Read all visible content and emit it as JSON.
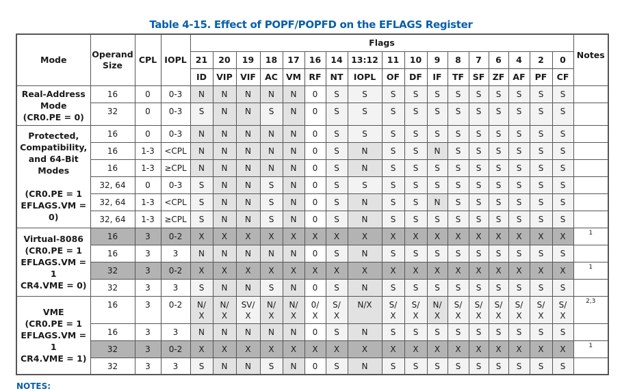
{
  "title": "Table 4-15.  Effect of POPF/POPFD on the EFLAGS Register",
  "headers": {
    "mode": "Mode",
    "operand_size": "Operand Size",
    "cpl": "CPL",
    "iopl": "IOPL",
    "flags": "Flags",
    "notes": "Notes",
    "bits": [
      "21",
      "20",
      "19",
      "18",
      "17",
      "16",
      "14",
      "13:12",
      "11",
      "10",
      "9",
      "8",
      "7",
      "6",
      "4",
      "2",
      "0"
    ],
    "names": [
      "ID",
      "VIP",
      "VIF",
      "AC",
      "VM",
      "RF",
      "NT",
      "IOPL",
      "OF",
      "DF",
      "IF",
      "TF",
      "SF",
      "ZF",
      "AF",
      "PF",
      "CF"
    ]
  },
  "groups": [
    {
      "mode": [
        "Real-Address",
        "Mode",
        "(CR0.PE = 0)"
      ],
      "rows": [
        0,
        1
      ]
    },
    {
      "mode": [
        "Protected,",
        "Compatibility,",
        "and 64-Bit",
        "Modes",
        "",
        "(CR0.PE = 1",
        "EFLAGS.VM = 0)"
      ],
      "rows": [
        2,
        3,
        4,
        5,
        6,
        7
      ]
    },
    {
      "mode": [
        "Virtual-8086",
        "(CR0.PE = 1",
        "EFLAGS.VM = 1",
        "CR4.VME = 0)"
      ],
      "rows": [
        8,
        9,
        10,
        11
      ]
    },
    {
      "mode": [
        "VME",
        "(CR0.PE = 1",
        "EFLAGS.VM = 1",
        "CR4.VME = 1)"
      ],
      "rows": [
        12,
        13,
        14,
        15
      ]
    }
  ],
  "rows": [
    {
      "size": "16",
      "cpl": "0",
      "iopl": "0-3",
      "flags": [
        "N",
        "N",
        "N",
        "N",
        "N",
        "0",
        "S",
        "S",
        "S",
        "S",
        "S",
        "S",
        "S",
        "S",
        "S",
        "S",
        "S"
      ],
      "note": ""
    },
    {
      "size": "32",
      "cpl": "0",
      "iopl": "0-3",
      "flags": [
        "S",
        "N",
        "N",
        "S",
        "N",
        "0",
        "S",
        "S",
        "S",
        "S",
        "S",
        "S",
        "S",
        "S",
        "S",
        "S",
        "S"
      ],
      "note": ""
    },
    {
      "size": "16",
      "cpl": "0",
      "iopl": "0-3",
      "flags": [
        "N",
        "N",
        "N",
        "N",
        "N",
        "0",
        "S",
        "S",
        "S",
        "S",
        "S",
        "S",
        "S",
        "S",
        "S",
        "S",
        "S"
      ],
      "note": ""
    },
    {
      "size": "16",
      "cpl": "1-3",
      "iopl": "<CPL",
      "flags": [
        "N",
        "N",
        "N",
        "N",
        "N",
        "0",
        "S",
        "N",
        "S",
        "S",
        "N",
        "S",
        "S",
        "S",
        "S",
        "S",
        "S"
      ],
      "note": ""
    },
    {
      "size": "16",
      "cpl": "1-3",
      "iopl": "≥CPL",
      "flags": [
        "N",
        "N",
        "N",
        "N",
        "N",
        "0",
        "S",
        "N",
        "S",
        "S",
        "S",
        "S",
        "S",
        "S",
        "S",
        "S",
        "S"
      ],
      "note": ""
    },
    {
      "size": "32, 64",
      "cpl": "0",
      "iopl": "0-3",
      "flags": [
        "S",
        "N",
        "N",
        "S",
        "N",
        "0",
        "S",
        "S",
        "S",
        "S",
        "S",
        "S",
        "S",
        "S",
        "S",
        "S",
        "S"
      ],
      "note": ""
    },
    {
      "size": "32, 64",
      "cpl": "1-3",
      "iopl": "<CPL",
      "flags": [
        "S",
        "N",
        "N",
        "S",
        "N",
        "0",
        "S",
        "N",
        "S",
        "S",
        "N",
        "S",
        "S",
        "S",
        "S",
        "S",
        "S"
      ],
      "note": ""
    },
    {
      "size": "32, 64",
      "cpl": "1-3",
      "iopl": "≥CPL",
      "flags": [
        "S",
        "N",
        "N",
        "S",
        "N",
        "0",
        "S",
        "N",
        "S",
        "S",
        "S",
        "S",
        "S",
        "S",
        "S",
        "S",
        "S"
      ],
      "note": ""
    },
    {
      "size": "16",
      "cpl": "3",
      "iopl": "0-2",
      "flags": [
        "X",
        "X",
        "X",
        "X",
        "X",
        "X",
        "X",
        "X",
        "X",
        "X",
        "X",
        "X",
        "X",
        "X",
        "X",
        "X",
        "X"
      ],
      "note": "1"
    },
    {
      "size": "16",
      "cpl": "3",
      "iopl": "3",
      "flags": [
        "N",
        "N",
        "N",
        "N",
        "N",
        "0",
        "S",
        "N",
        "S",
        "S",
        "S",
        "S",
        "S",
        "S",
        "S",
        "S",
        "S"
      ],
      "note": ""
    },
    {
      "size": "32",
      "cpl": "3",
      "iopl": "0-2",
      "flags": [
        "X",
        "X",
        "X",
        "X",
        "X",
        "X",
        "X",
        "X",
        "X",
        "X",
        "X",
        "X",
        "X",
        "X",
        "X",
        "X",
        "X"
      ],
      "note": "1"
    },
    {
      "size": "32",
      "cpl": "3",
      "iopl": "3",
      "flags": [
        "S",
        "N",
        "N",
        "S",
        "N",
        "0",
        "S",
        "N",
        "S",
        "S",
        "S",
        "S",
        "S",
        "S",
        "S",
        "S",
        "S"
      ],
      "note": ""
    },
    {
      "size": "16",
      "cpl": "3",
      "iopl": "0-2",
      "flags": [
        "N/\nX",
        "N/\nX",
        "SV/\nX",
        "N/\nX",
        "N/\nX",
        "0/\nX",
        "S/\nX",
        "N/X",
        "S/\nX",
        "S/\nX",
        "N/\nX",
        "S/\nX",
        "S/\nX",
        "S/\nX",
        "S/\nX",
        "S/\nX",
        "S/\nX"
      ],
      "note": "2,3"
    },
    {
      "size": "16",
      "cpl": "3",
      "iopl": "3",
      "flags": [
        "N",
        "N",
        "N",
        "N",
        "N",
        "0",
        "S",
        "N",
        "S",
        "S",
        "S",
        "S",
        "S",
        "S",
        "S",
        "S",
        "S"
      ],
      "note": ""
    },
    {
      "size": "32",
      "cpl": "3",
      "iopl": "0-2",
      "flags": [
        "X",
        "X",
        "X",
        "X",
        "X",
        "X",
        "X",
        "X",
        "X",
        "X",
        "X",
        "X",
        "X",
        "X",
        "X",
        "X",
        "X"
      ],
      "note": "1"
    },
    {
      "size": "32",
      "cpl": "3",
      "iopl": "3",
      "flags": [
        "S",
        "N",
        "N",
        "S",
        "N",
        "0",
        "S",
        "N",
        "S",
        "S",
        "S",
        "S",
        "S",
        "S",
        "S",
        "S",
        "S"
      ],
      "note": ""
    }
  ],
  "colors": {
    "title": "#0860a8",
    "cell_white": "#ffffff",
    "cell_light": "#f3f3f3",
    "cell_medium": "#e2e2e2",
    "cell_dark": "#b3b3b3"
  },
  "footer": {
    "notes_label": "NOTES:"
  }
}
